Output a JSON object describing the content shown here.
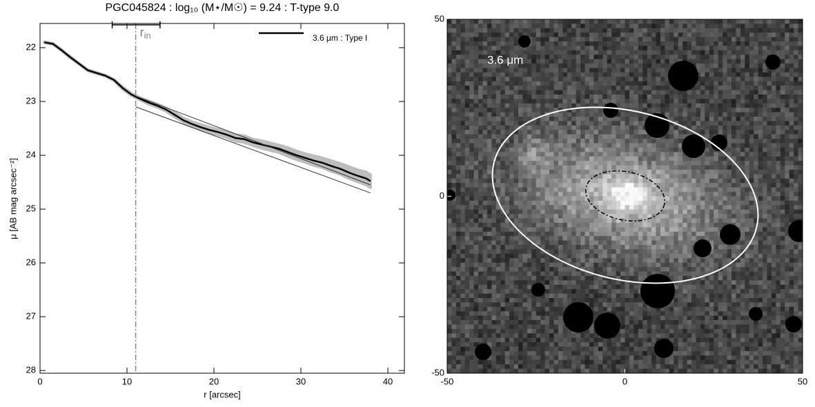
{
  "chart_data": [
    {
      "type": "line",
      "title": "PGC045824 : log₁₀ (M⋆/M☉) = 9.24 : T-type 9.0",
      "x_label": "r [arcsec]",
      "y_label": "μ [AB mag arcsec⁻²]",
      "xlim": [
        0,
        41.9
      ],
      "ylim": [
        28.05,
        21.55
      ],
      "xticks": [
        0,
        10,
        20,
        30,
        40
      ],
      "yticks": [
        22,
        23,
        24,
        25,
        26,
        27,
        28
      ],
      "series": [
        {
          "name": "3.6 μm : Type I",
          "color": "#000000",
          "x": [
            0.5,
            1.5,
            2.5,
            3.5,
            4.5,
            5.5,
            6.5,
            7.5,
            8.5,
            9.5,
            10.5,
            11.5,
            12.5,
            13.5,
            14.5,
            15.5,
            16.5,
            17.5,
            18.5,
            19.5,
            20.5,
            21.5,
            22.5,
            23.5,
            24.5,
            25.5,
            26.5,
            27.5,
            28.5,
            29.5,
            30.5,
            31.5,
            32.5,
            33.5,
            34.5,
            35.5,
            36.5,
            37.5,
            38
          ],
          "values": [
            21.9,
            21.93,
            22.05,
            22.18,
            22.3,
            22.42,
            22.47,
            22.52,
            22.6,
            22.75,
            22.87,
            22.95,
            23.02,
            23.08,
            23.15,
            23.25,
            23.35,
            23.42,
            23.48,
            23.53,
            23.57,
            23.62,
            23.68,
            23.7,
            23.76,
            23.8,
            23.84,
            23.88,
            23.94,
            24.0,
            24.05,
            24.1,
            24.14,
            24.2,
            24.25,
            24.32,
            24.38,
            24.43,
            24.48
          ],
          "errors": [
            0.01,
            0.01,
            0.01,
            0.01,
            0.01,
            0.01,
            0.01,
            0.01,
            0.01,
            0.02,
            0.02,
            0.02,
            0.03,
            0.03,
            0.03,
            0.04,
            0.04,
            0.04,
            0.05,
            0.05,
            0.05,
            0.05,
            0.06,
            0.06,
            0.06,
            0.07,
            0.07,
            0.07,
            0.08,
            0.08,
            0.08,
            0.09,
            0.09,
            0.1,
            0.1,
            0.11,
            0.11,
            0.12,
            0.12
          ],
          "band_color": "#bdbdbd"
        }
      ],
      "fits": [
        {
          "x": [
            11,
            38
          ],
          "values": [
            22.9,
            24.55
          ],
          "color": "#333333"
        },
        {
          "x": [
            11,
            38
          ],
          "values": [
            23.1,
            24.7
          ],
          "color": "#333333"
        }
      ],
      "r_in": {
        "value": 11,
        "lower": 8.3,
        "upper": 13.8,
        "label": "r",
        "sub": "in",
        "color": "#888888"
      }
    },
    {
      "type": "image",
      "label": "3.6 μm",
      "xlim": [
        -50,
        50
      ],
      "ylim": [
        -50,
        50
      ],
      "xticks": [
        -50,
        0,
        50
      ],
      "yticks": [
        -50,
        0,
        50
      ]
    }
  ]
}
